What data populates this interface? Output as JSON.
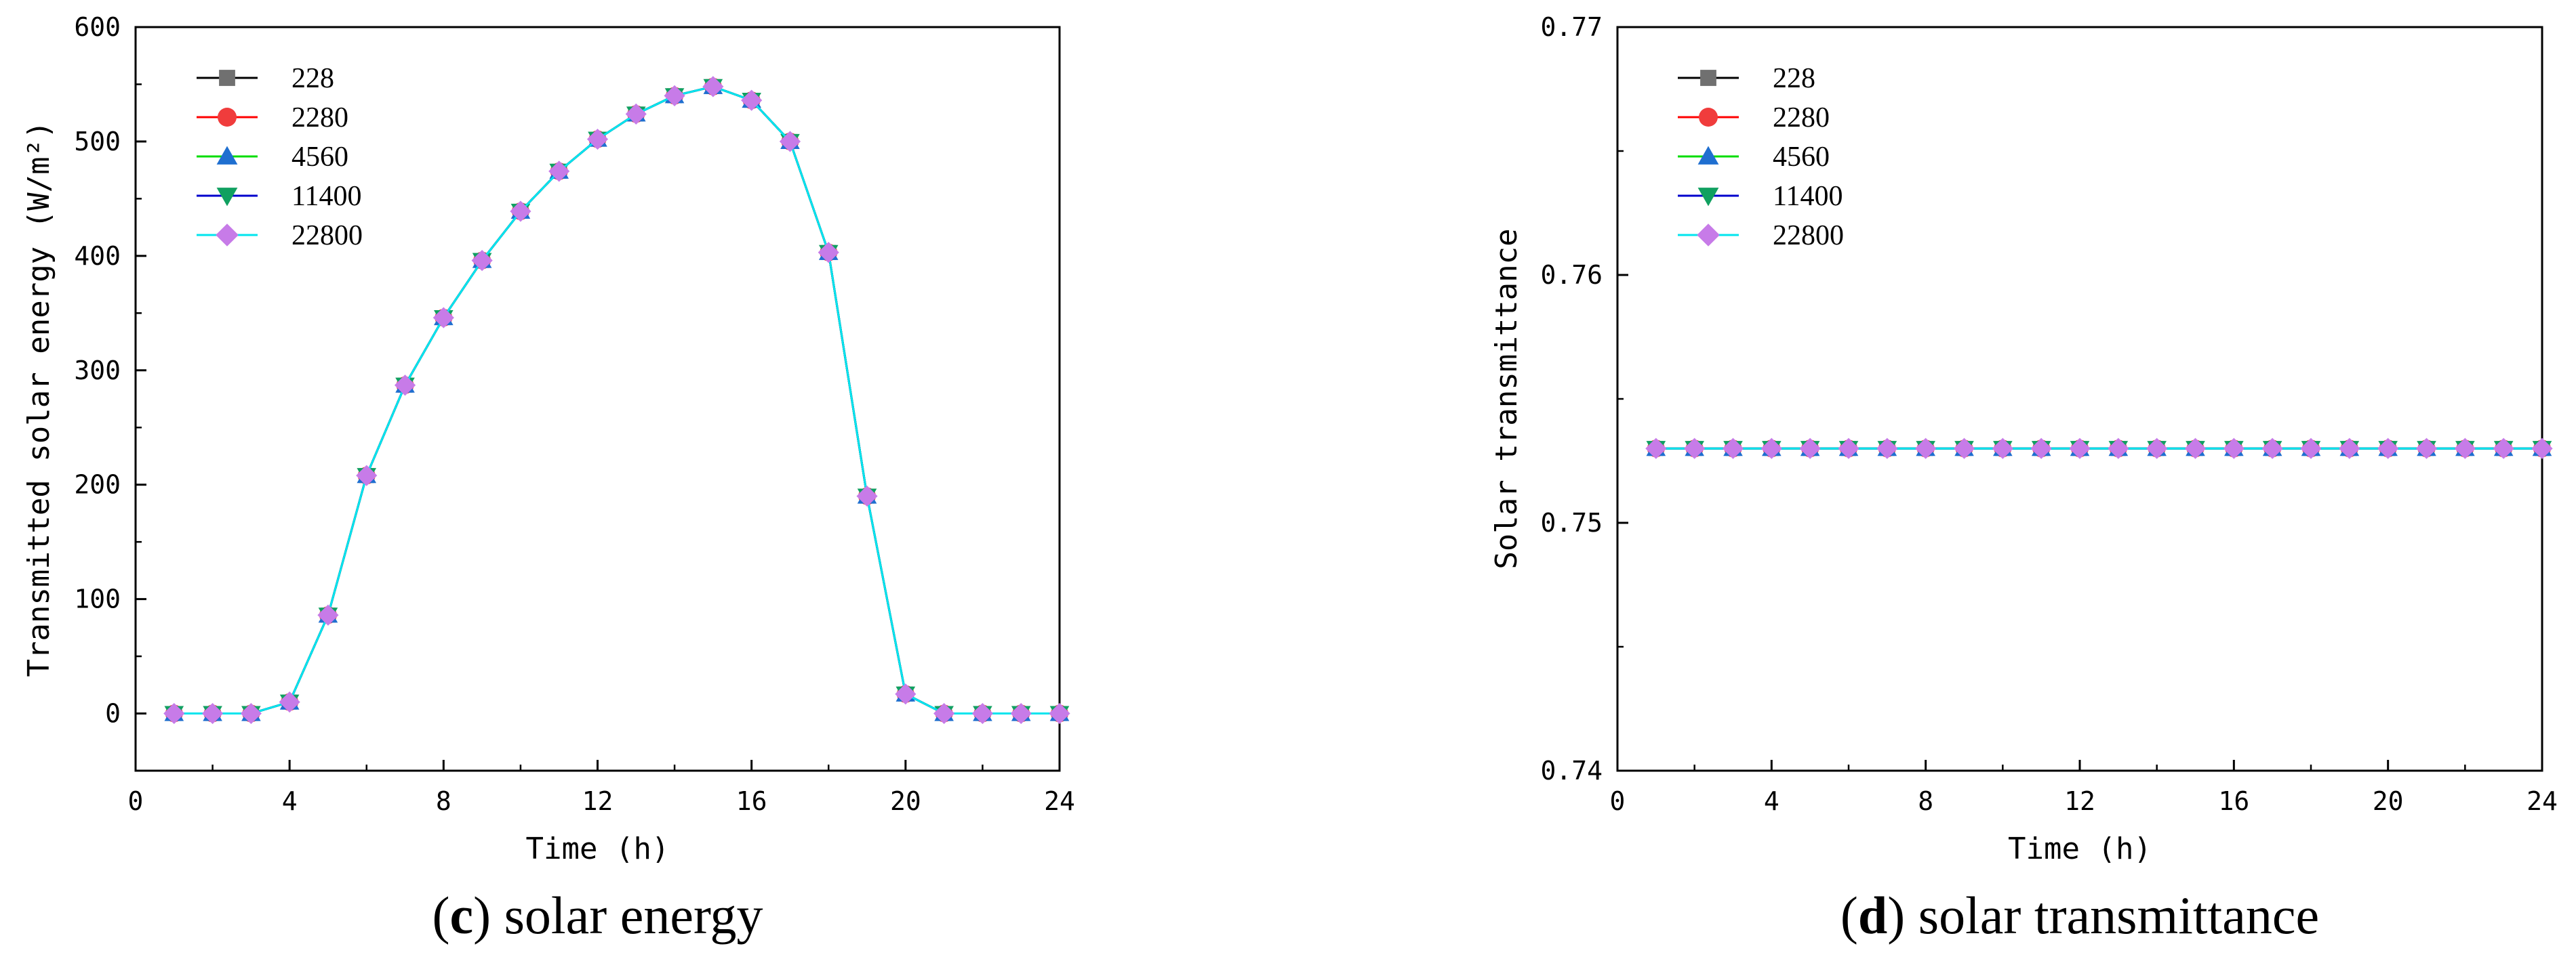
{
  "chart_data": [
    {
      "type": "line",
      "panel_letter": "c",
      "caption": "solar energy",
      "xlabel": "Time (h)",
      "ylabel": "Transmitted solar energy (W/m²)",
      "xlim": [
        0,
        24
      ],
      "ylim": [
        -50,
        600
      ],
      "xticks": [
        "0",
        "4",
        "8",
        "12",
        "16",
        "20",
        "24"
      ],
      "yticks": [
        "0",
        "100",
        "200",
        "300",
        "400",
        "500",
        "600"
      ],
      "x": [
        1,
        2,
        3,
        4,
        5,
        6,
        7,
        8,
        9,
        10,
        11,
        12,
        13,
        14,
        15,
        16,
        17,
        18,
        19,
        20,
        21,
        22,
        23,
        24
      ],
      "series": [
        {
          "name": "228",
          "color": "#000000",
          "marker_color": "#707070",
          "marker": "square",
          "values": [
            0,
            0,
            0,
            10,
            86,
            208,
            287,
            346,
            396,
            439,
            474,
            502,
            524,
            540,
            548,
            536,
            500,
            403,
            190,
            17,
            0,
            0,
            0,
            0
          ]
        },
        {
          "name": "2280",
          "color": "#ff0000",
          "marker_color": "#f03c3c",
          "marker": "circle",
          "values": [
            0,
            0,
            0,
            10,
            86,
            208,
            287,
            346,
            396,
            439,
            474,
            502,
            524,
            540,
            548,
            536,
            500,
            403,
            190,
            17,
            0,
            0,
            0,
            0
          ]
        },
        {
          "name": "4560",
          "color": "#00dd00",
          "marker_color": "#1f6fd0",
          "marker": "triangle-up",
          "values": [
            0,
            0,
            0,
            10,
            86,
            208,
            287,
            346,
            396,
            439,
            474,
            502,
            524,
            540,
            548,
            536,
            500,
            403,
            190,
            17,
            0,
            0,
            0,
            0
          ]
        },
        {
          "name": "11400",
          "color": "#0000cc",
          "marker_color": "#10a060",
          "marker": "triangle-down",
          "values": [
            0,
            0,
            0,
            10,
            86,
            208,
            287,
            346,
            396,
            439,
            474,
            502,
            524,
            540,
            548,
            536,
            500,
            403,
            190,
            17,
            0,
            0,
            0,
            0
          ]
        },
        {
          "name": "22800",
          "color": "#00e5ee",
          "marker_color": "#c77be8",
          "marker": "diamond",
          "values": [
            0,
            0,
            0,
            10,
            86,
            208,
            287,
            346,
            396,
            439,
            474,
            502,
            524,
            540,
            548,
            536,
            500,
            403,
            190,
            17,
            0,
            0,
            0,
            0
          ]
        }
      ]
    },
    {
      "type": "line",
      "panel_letter": "d",
      "caption": "solar transmittance",
      "xlabel": "Time (h)",
      "ylabel": "Solar transmittance",
      "xlim": [
        0,
        24
      ],
      "ylim": [
        0.74,
        0.77
      ],
      "xticks": [
        "0",
        "4",
        "8",
        "12",
        "16",
        "20",
        "24"
      ],
      "yticks": [
        "0.74",
        "0.75",
        "0.76",
        "0.77"
      ],
      "x": [
        1,
        2,
        3,
        4,
        5,
        6,
        7,
        8,
        9,
        10,
        11,
        12,
        13,
        14,
        15,
        16,
        17,
        18,
        19,
        20,
        21,
        22,
        23,
        24
      ],
      "series": [
        {
          "name": "228",
          "color": "#000000",
          "marker_color": "#707070",
          "marker": "square",
          "values": [
            0.753,
            0.753,
            0.753,
            0.753,
            0.753,
            0.753,
            0.753,
            0.753,
            0.753,
            0.753,
            0.753,
            0.753,
            0.753,
            0.753,
            0.753,
            0.753,
            0.753,
            0.753,
            0.753,
            0.753,
            0.753,
            0.753,
            0.753,
            0.753
          ]
        },
        {
          "name": "2280",
          "color": "#ff0000",
          "marker_color": "#f03c3c",
          "marker": "circle",
          "values": [
            0.753,
            0.753,
            0.753,
            0.753,
            0.753,
            0.753,
            0.753,
            0.753,
            0.753,
            0.753,
            0.753,
            0.753,
            0.753,
            0.753,
            0.753,
            0.753,
            0.753,
            0.753,
            0.753,
            0.753,
            0.753,
            0.753,
            0.753,
            0.753
          ]
        },
        {
          "name": "4560",
          "color": "#00dd00",
          "marker_color": "#1f6fd0",
          "marker": "triangle-up",
          "values": [
            0.753,
            0.753,
            0.753,
            0.753,
            0.753,
            0.753,
            0.753,
            0.753,
            0.753,
            0.753,
            0.753,
            0.753,
            0.753,
            0.753,
            0.753,
            0.753,
            0.753,
            0.753,
            0.753,
            0.753,
            0.753,
            0.753,
            0.753,
            0.753
          ]
        },
        {
          "name": "11400",
          "color": "#0000cc",
          "marker_color": "#10a060",
          "marker": "triangle-down",
          "values": [
            0.753,
            0.753,
            0.753,
            0.753,
            0.753,
            0.753,
            0.753,
            0.753,
            0.753,
            0.753,
            0.753,
            0.753,
            0.753,
            0.753,
            0.753,
            0.753,
            0.753,
            0.753,
            0.753,
            0.753,
            0.753,
            0.753,
            0.753,
            0.753
          ]
        },
        {
          "name": "22800",
          "color": "#00e5ee",
          "marker_color": "#c77be8",
          "marker": "diamond",
          "values": [
            0.753,
            0.753,
            0.753,
            0.753,
            0.753,
            0.753,
            0.753,
            0.753,
            0.753,
            0.753,
            0.753,
            0.753,
            0.753,
            0.753,
            0.753,
            0.753,
            0.753,
            0.753,
            0.753,
            0.753,
            0.753,
            0.753,
            0.753,
            0.753
          ]
        }
      ]
    }
  ]
}
